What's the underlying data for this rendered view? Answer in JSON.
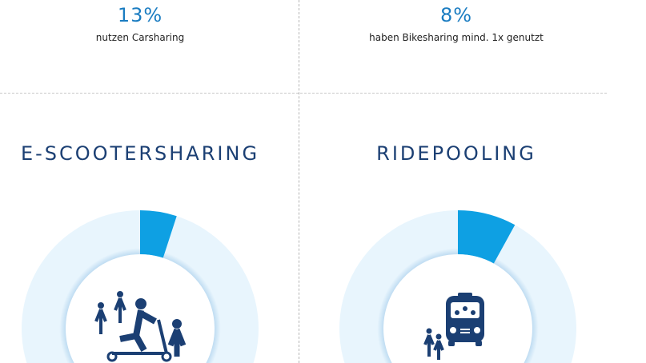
{
  "stats": [
    {
      "value": "13%",
      "label": "nutzen Carsharing"
    },
    {
      "value": "8%",
      "label": "haben Bikesharing mind. 1x genutzt"
    }
  ],
  "sections": [
    {
      "title": "E-SCOOTERSHARING",
      "share": 0.05,
      "icon": "e-scooter-people-icon"
    },
    {
      "title": "RIDEPOOLING",
      "share": 0.08,
      "icon": "minibus-people-icon"
    }
  ],
  "colors": {
    "accent": "#0ea0e3",
    "ring": "#e8f5fd",
    "navy": "#1b3f73",
    "percent": "#1a7cc1"
  }
}
